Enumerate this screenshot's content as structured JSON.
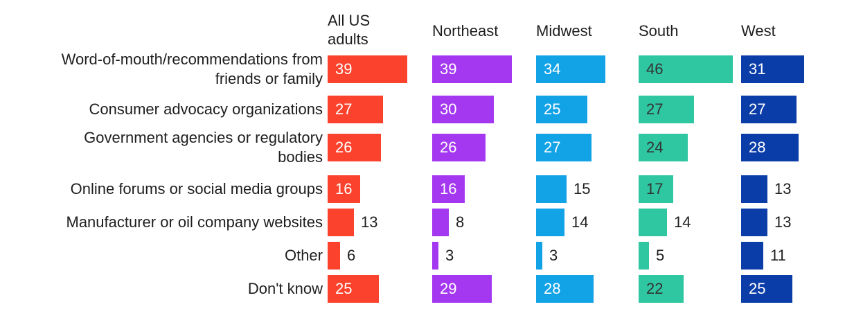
{
  "chart_data": {
    "type": "bar",
    "orientation": "horizontal",
    "axis": "none",
    "grid": false,
    "value_labels_shown": true,
    "value_range": [
      0,
      46
    ],
    "legend_position": "column-headers-top",
    "categories": [
      "Word-of-mouth/recommendations from friends or family",
      "Consumer advocacy organizations",
      "Government agencies or regulatory bodies",
      "Online forums or social media groups",
      "Manufacturer or oil company websites",
      "Other",
      "Don't know"
    ],
    "category_lines": [
      [
        "Word-of-mouth/recommendations from",
        "friends or family"
      ],
      [
        "Consumer advocacy organizations"
      ],
      [
        "Government agencies or regulatory",
        "bodies"
      ],
      [
        "Online forums or social media groups"
      ],
      [
        "Manufacturer or oil company websites"
      ],
      [
        "Other"
      ],
      [
        "Don't know"
      ]
    ],
    "series": [
      {
        "name": "All US adults",
        "color": "#FA422D",
        "inside_label_color": "#FFFFFF",
        "values": [
          39,
          27,
          26,
          16,
          13,
          6,
          25
        ]
      },
      {
        "name": "Northeast",
        "color": "#A438F0",
        "inside_label_color": "#FFFFFF",
        "values": [
          39,
          30,
          26,
          16,
          8,
          3,
          29
        ]
      },
      {
        "name": "Midwest",
        "color": "#12A2E6",
        "inside_label_color": "#FFFFFF",
        "values": [
          34,
          25,
          27,
          15,
          14,
          3,
          28
        ]
      },
      {
        "name": "South",
        "color": "#2FC6A2",
        "inside_label_color": "#333333",
        "values": [
          46,
          27,
          24,
          17,
          14,
          5,
          22
        ]
      },
      {
        "name": "West",
        "color": "#0B3DA8",
        "inside_label_color": "#FFFFFF",
        "values": [
          31,
          27,
          28,
          13,
          13,
          11,
          25
        ]
      }
    ],
    "outside_label_color": "#1E1E1E",
    "text_color": "#1E1E1E",
    "background_color": "#FFFFFF"
  }
}
